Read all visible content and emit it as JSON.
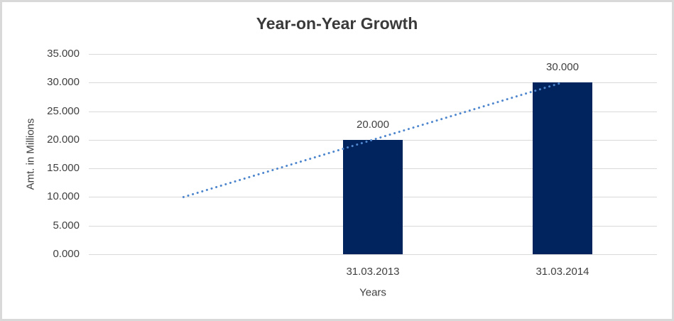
{
  "colors": {
    "background": "#ffffff",
    "border": "#d9d9d9",
    "grid": "#d9d9d9",
    "title_text": "#3a3a3a",
    "axis_text": "#404040"
  },
  "chart_data": {
    "type": "bar",
    "title": "Year-on-Year Growth",
    "xlabel": "Years",
    "ylabel": "Amt. in Millions",
    "categories": [
      "31.03.2013",
      "31.03.2014"
    ],
    "values": [
      20000,
      30000
    ],
    "data_labels": [
      "20.000",
      "30.000"
    ],
    "ylim": [
      0,
      35000
    ],
    "ytick_step": 5000,
    "ytick_labels": [
      "0.000",
      "5.000",
      "10.000",
      "15.000",
      "20.000",
      "25.000",
      "30.000",
      "35.000"
    ],
    "grid": true,
    "legend": "none",
    "bar_color": "#02245e",
    "x_slots": 3,
    "bar_slots": [
      1,
      2
    ],
    "trendline": {
      "type": "linear",
      "style": "dotted",
      "color": "#4f87ce",
      "from_value": 10000,
      "to_value": 30000,
      "spans_slots": [
        0,
        2
      ]
    }
  }
}
